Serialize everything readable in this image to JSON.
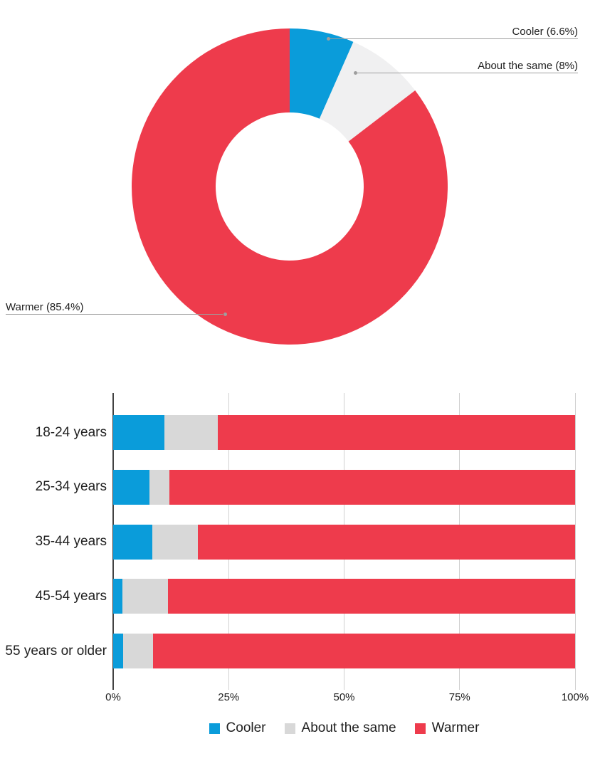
{
  "colors": {
    "leader_line": "#9e9e9e",
    "grid": "#d0d0d0",
    "axis": "#424242",
    "text": "#212121"
  },
  "chart_data": [
    {
      "type": "pie",
      "subtype": "donut",
      "title": "",
      "labels": [
        "Cooler",
        "About the same",
        "Warmer"
      ],
      "values": [
        6.6,
        8,
        85.4
      ],
      "callouts": [
        "Cooler (6.6%)",
        "About the same (8%)",
        "Warmer (85.4%)"
      ],
      "slice_colors": [
        "#0a9cda",
        "#f0f0f1",
        "#ee3b4c"
      ],
      "hole_ratio": 0.47,
      "start_angle_deg": 0,
      "direction": "clockwise",
      "legend_position": "none"
    },
    {
      "type": "bar",
      "orientation": "horizontal",
      "stacked": true,
      "title": "",
      "categories": [
        "18-24 years",
        "25-34 years",
        "35-44 years",
        "45-54 years",
        "55 years or older"
      ],
      "series": [
        {
          "name": "Cooler",
          "color": "#0a9cda",
          "values": [
            11.1,
            7.9,
            8.5,
            2.0,
            2.1
          ]
        },
        {
          "name": "About the same",
          "color": "#d8d8d8",
          "values": [
            11.5,
            4.3,
            9.9,
            9.9,
            6.5
          ]
        },
        {
          "name": "Warmer",
          "color": "#ee3b4c",
          "values": [
            77.4,
            87.8,
            81.6,
            88.1,
            91.4
          ]
        }
      ],
      "x_ticks": [
        "0%",
        "25%",
        "50%",
        "75%",
        "100%"
      ],
      "xlim": [
        0,
        100
      ],
      "grid": true,
      "legend": [
        {
          "label": "Cooler",
          "color": "#0a9cda"
        },
        {
          "label": "About the same",
          "color": "#d8d8d8"
        },
        {
          "label": "Warmer",
          "color": "#ee3b4c"
        }
      ],
      "legend_position": "bottom"
    }
  ]
}
